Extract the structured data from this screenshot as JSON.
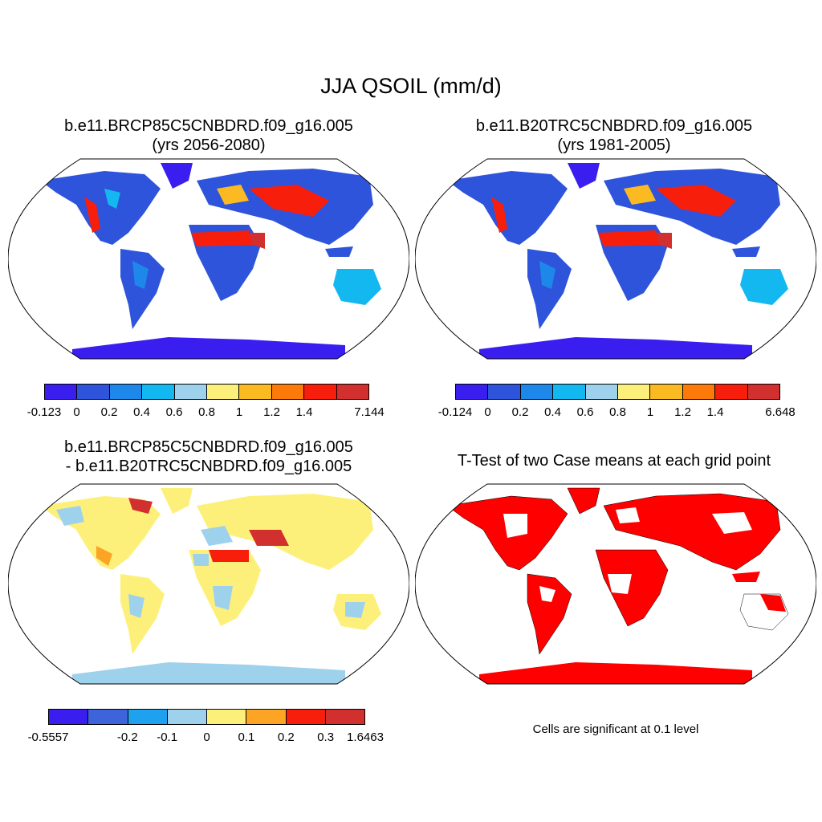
{
  "main_title": "JJA QSOIL (mm/d)",
  "panels": {
    "top_left": {
      "title_line1": "b.e11.BRCP85C5CNBDRD.f09_g16.005",
      "title_line2": "(yrs 2056-2080)",
      "colorbar": {
        "colors": [
          "#3a1ef0",
          "#2e54dc",
          "#1e88ea",
          "#14b8f0",
          "#9ed2ec",
          "#fdf07a",
          "#fcba22",
          "#fb7a0a",
          "#f81e0c",
          "#d2302e"
        ],
        "labels": [
          "-0.123",
          "0",
          "0.2",
          "0.4",
          "0.6",
          "0.8",
          "1",
          "1.2",
          "1.4",
          "7.144"
        ]
      }
    },
    "top_right": {
      "title_line1": "b.e11.B20TRC5CNBDRD.f09_g16.005",
      "title_line2": "(yrs 1981-2005)",
      "colorbar": {
        "colors": [
          "#3a1ef0",
          "#2e54dc",
          "#1e88ea",
          "#14b8f0",
          "#9ed2ec",
          "#fdf07a",
          "#fcba22",
          "#fb7a0a",
          "#f81e0c",
          "#d2302e"
        ],
        "labels": [
          "-0.124",
          "0",
          "0.2",
          "0.4",
          "0.6",
          "0.8",
          "1",
          "1.2",
          "1.4",
          "6.648"
        ]
      }
    },
    "bottom_left": {
      "title_line1": "b.e11.BRCP85C5CNBDRD.f09_g16.005",
      "title_line2": "- b.e11.B20TRC5CNBDRD.f09_g16.005",
      "colorbar": {
        "colors": [
          "#3a1ef0",
          "#3e64dc",
          "#1ea2f0",
          "#9ed2ec",
          "#fdf07a",
          "#fca424",
          "#f81e0c",
          "#d2302e"
        ],
        "labels": [
          "-0.5557",
          "-0.2",
          "-0.1",
          "0",
          "0.1",
          "0.2",
          "0.3",
          "1.6463"
        ]
      }
    },
    "bottom_right": {
      "title": "T-Test of two Case means at each grid point",
      "note": "Cells are significant at 0.1 level"
    }
  }
}
